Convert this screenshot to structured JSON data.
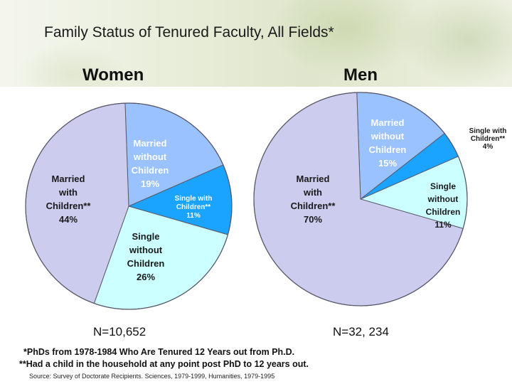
{
  "title": "Family Status of Tenured Faculty, All Fields*",
  "chart_data": [
    {
      "type": "pie",
      "title": "Women",
      "n_label": "N=10,652",
      "slices": [
        {
          "name": "Married without Children",
          "value": 19,
          "color": "#99c2ff",
          "label": [
            "Married",
            "without",
            "Children",
            "19%"
          ],
          "label_color": "#ffffff"
        },
        {
          "name": "Single with Children**",
          "value": 11,
          "color": "#1aa3ff",
          "label": [
            "Single with",
            "Children**",
            "11%"
          ],
          "label_color": "#ffffff"
        },
        {
          "name": "Single without Children",
          "value": 26,
          "color": "#ccffff",
          "label": [
            "Single",
            "without",
            "Children",
            "26%"
          ],
          "label_color": "#1a1a1a"
        },
        {
          "name": "Married with Children**",
          "value": 44,
          "color": "#ccccee",
          "label": [
            "Married",
            "with",
            "Children**",
            "44%"
          ],
          "label_color": "#1a1a1a"
        }
      ]
    },
    {
      "type": "pie",
      "title": "Men",
      "n_label": "N=32, 234",
      "slices": [
        {
          "name": "Married without Children",
          "value": 15,
          "color": "#99c2ff",
          "label": [
            "Married",
            "without",
            "Children",
            "15%"
          ],
          "label_color": "#ffffff"
        },
        {
          "name": "Single with Children**",
          "value": 4,
          "color": "#1aa3ff",
          "label": [
            "Single with",
            "Children**",
            "4%"
          ],
          "label_color": "#1a1a1a"
        },
        {
          "name": "Single without Children",
          "value": 11,
          "color": "#ccffff",
          "label": [
            "Single",
            "without",
            "Children",
            "11%"
          ],
          "label_color": "#1a1a1a"
        },
        {
          "name": "Married with Children**",
          "value": 70,
          "color": "#ccccee",
          "label": [
            "Married",
            "with",
            "Children**",
            "70%"
          ],
          "label_color": "#1a1a1a"
        }
      ]
    }
  ],
  "footnotes": [
    "*PhDs from 1978-1984 Who Are Tenured 12 Years out from Ph.D.",
    "**Had a child in the household at any point post PhD to 12 years out."
  ],
  "source": "Source: Survey of Doctorate Recipients. Sciences, 1979-1999, Humanities, 1979-1995"
}
